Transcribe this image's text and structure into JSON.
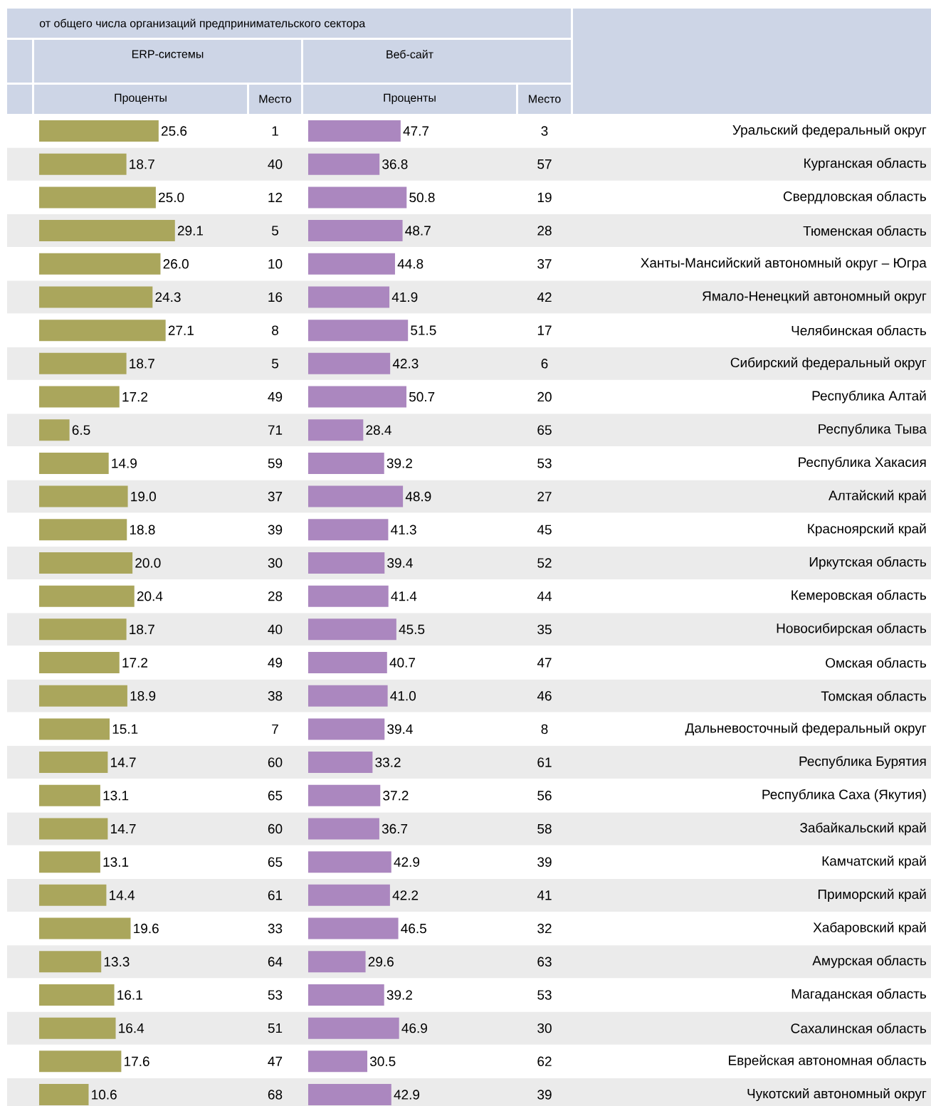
{
  "chart_data": [
    {
      "type": "bar",
      "orientation": "horizontal",
      "title": "от общего числа организаций предпринимательского сектора",
      "subtitle": "ERP-системы",
      "xlabel": "Проценты",
      "color": "#aaa65c",
      "categories": [
        "Уральский федеральный округ",
        "Курганская область",
        "Свердловская область",
        "Тюменская область",
        "Ханты-Мансийский автономный округ – Югра",
        "Ямало-Ненецкий автономный округ",
        "Челябинская область",
        "Сибирский федеральный округ",
        "Республика Алтай",
        "Республика Тыва",
        "Республика Хакасия",
        "Алтайский край",
        "Красноярский край",
        "Иркутская область",
        "Кемеровская область",
        "Новосибирская область",
        "Омская область",
        "Томская область",
        "Дальневосточный федеральный округ",
        "Республика Бурятия",
        "Республика Саха (Якутия)",
        "Забайкальский край",
        "Камчатский край",
        "Приморский край",
        "Хабаровский край",
        "Амурская область",
        "Магаданская область",
        "Сахалинская область",
        "Еврейская автономная область",
        "Чукотский автономный округ"
      ],
      "values": [
        25.6,
        18.7,
        25.0,
        29.1,
        26.0,
        24.3,
        27.1,
        18.7,
        17.2,
        6.5,
        14.9,
        19.0,
        18.8,
        20.0,
        20.4,
        18.7,
        17.2,
        18.9,
        15.1,
        14.7,
        13.1,
        14.7,
        13.1,
        14.4,
        19.6,
        13.3,
        16.1,
        16.4,
        17.6,
        10.6
      ],
      "value_labels": [
        "25.6",
        "18.7",
        "25.0",
        "29.1",
        "26.0",
        "24.3",
        "27.1",
        "18.7",
        "17.2",
        "6.5",
        "14.9",
        "19.0",
        "18.8",
        "20.0",
        "20.4",
        "18.7",
        "17.2",
        "18.9",
        "15.1",
        "14.7",
        "13.1",
        "14.7",
        "13.1",
        "14.4",
        "19.6",
        "13.3",
        "16.1",
        "16.4",
        "17.6",
        "10.6"
      ]
    },
    {
      "type": "other",
      "xlabel": "Место",
      "data_labels": true,
      "values": [
        1,
        40,
        12,
        5,
        10,
        16,
        8,
        5,
        49,
        71,
        59,
        37,
        39,
        30,
        28,
        40,
        49,
        38,
        7,
        60,
        65,
        60,
        65,
        61,
        33,
        64,
        53,
        51,
        47,
        68
      ]
    },
    {
      "type": "bar",
      "orientation": "horizontal",
      "subtitle": "Веб-сайт",
      "xlabel": "Проценты",
      "color": "#ab87bf",
      "values": [
        47.7,
        36.8,
        50.8,
        48.7,
        44.8,
        41.9,
        51.5,
        42.3,
        50.7,
        28.4,
        39.2,
        48.9,
        41.3,
        39.4,
        41.4,
        45.5,
        40.7,
        41.0,
        39.4,
        33.2,
        37.2,
        36.7,
        42.9,
        42.2,
        46.5,
        29.6,
        39.2,
        46.9,
        30.5,
        42.9
      ],
      "value_labels": [
        "47.7",
        "36.8",
        "50.8",
        "48.7",
        "44.8",
        "41.9",
        "51.5",
        "42.3",
        "50.7",
        "28.4",
        "39.2",
        "48.9",
        "41.3",
        "39.4",
        "41.4",
        "45.5",
        "40.7",
        "41.0",
        "39.4",
        "33.2",
        "37.2",
        "36.7",
        "42.9",
        "42.2",
        "46.5",
        "29.6",
        "39.2",
        "46.9",
        "30.5",
        "42.9"
      ]
    },
    {
      "type": "other",
      "xlabel": "Место",
      "data_labels": true,
      "values": [
        3,
        57,
        19,
        28,
        37,
        42,
        17,
        6,
        20,
        65,
        53,
        27,
        45,
        52,
        44,
        35,
        47,
        46,
        8,
        61,
        56,
        58,
        39,
        41,
        32,
        63,
        53,
        30,
        62,
        39
      ]
    }
  ]
}
